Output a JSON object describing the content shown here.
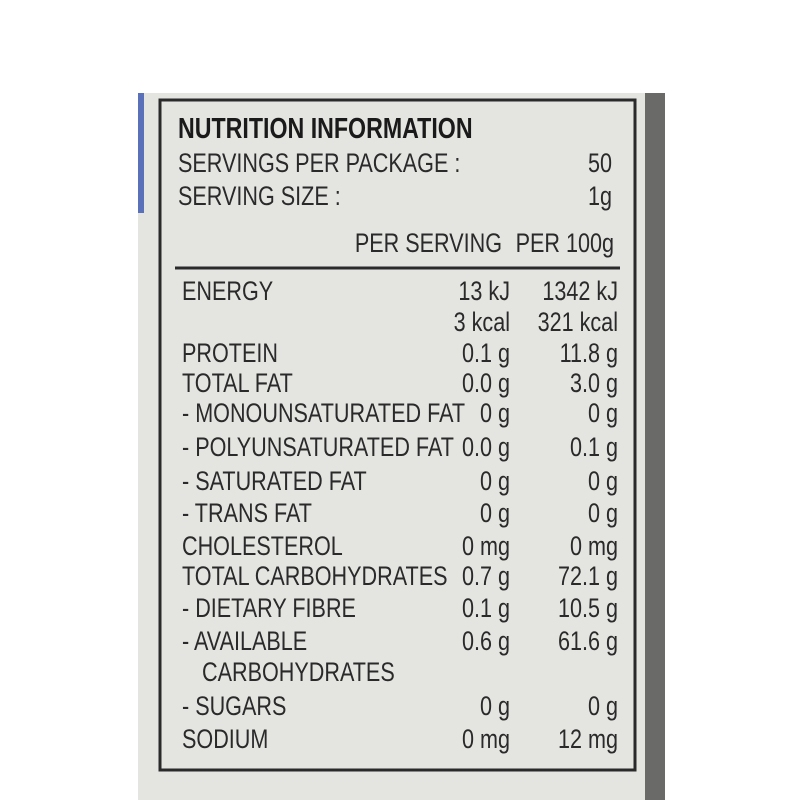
{
  "title": "NUTRITION INFORMATION",
  "servings": [
    {
      "label": "SERVINGS PER PACKAGE :",
      "value": "50"
    },
    {
      "label": "SERVING SIZE :",
      "value": "1g"
    }
  ],
  "table": {
    "header": [
      "PER SERVING",
      "PER 100g"
    ],
    "rows": [
      {
        "name": [
          "ENERGY"
        ],
        "per_serving": [
          "13 kJ",
          "3 kcal"
        ],
        "per_100g": [
          "1342 kJ",
          "321 kcal"
        ]
      },
      {
        "name": [
          "PROTEIN"
        ],
        "per_serving": [
          "0.1 g"
        ],
        "per_100g": [
          "11.8 g"
        ]
      },
      {
        "name": [
          "TOTAL FAT"
        ],
        "per_serving": [
          "0.0 g"
        ],
        "per_100g": [
          "3.0 g"
        ]
      },
      {
        "name": [
          "- MONOUNSATURATED FAT"
        ],
        "per_serving": [
          "0 g"
        ],
        "per_100g": [
          "0 g"
        ]
      },
      {
        "name": [
          "- POLYUNSATURATED FAT"
        ],
        "per_serving": [
          "0.0 g"
        ],
        "per_100g": [
          "0.1 g"
        ]
      },
      {
        "name": [
          "- SATURATED FAT"
        ],
        "per_serving": [
          "0 g"
        ],
        "per_100g": [
          "0 g"
        ]
      },
      {
        "name": [
          "- TRANS FAT"
        ],
        "per_serving": [
          "0 g"
        ],
        "per_100g": [
          "0 g"
        ]
      },
      {
        "name": [
          "CHOLESTEROL"
        ],
        "per_serving": [
          "0 mg"
        ],
        "per_100g": [
          "0 mg"
        ]
      },
      {
        "name": [
          "TOTAL CARBOHYDRATES"
        ],
        "per_serving": [
          "0.7 g"
        ],
        "per_100g": [
          "72.1 g"
        ]
      },
      {
        "name": [
          "- DIETARY FIBRE"
        ],
        "per_serving": [
          "0.1 g"
        ],
        "per_100g": [
          "10.5 g"
        ]
      },
      {
        "name": [
          "- AVAILABLE",
          "CARBOHYDRATES"
        ],
        "per_serving": [
          "0.6 g"
        ],
        "per_100g": [
          "61.6 g"
        ]
      },
      {
        "name": [
          "- SUGARS"
        ],
        "per_serving": [
          "0 g"
        ],
        "per_100g": [
          "0 g"
        ]
      },
      {
        "name": [
          "SODIUM"
        ],
        "per_serving": [
          "0 mg"
        ],
        "per_100g": [
          "12 mg"
        ]
      }
    ]
  }
}
